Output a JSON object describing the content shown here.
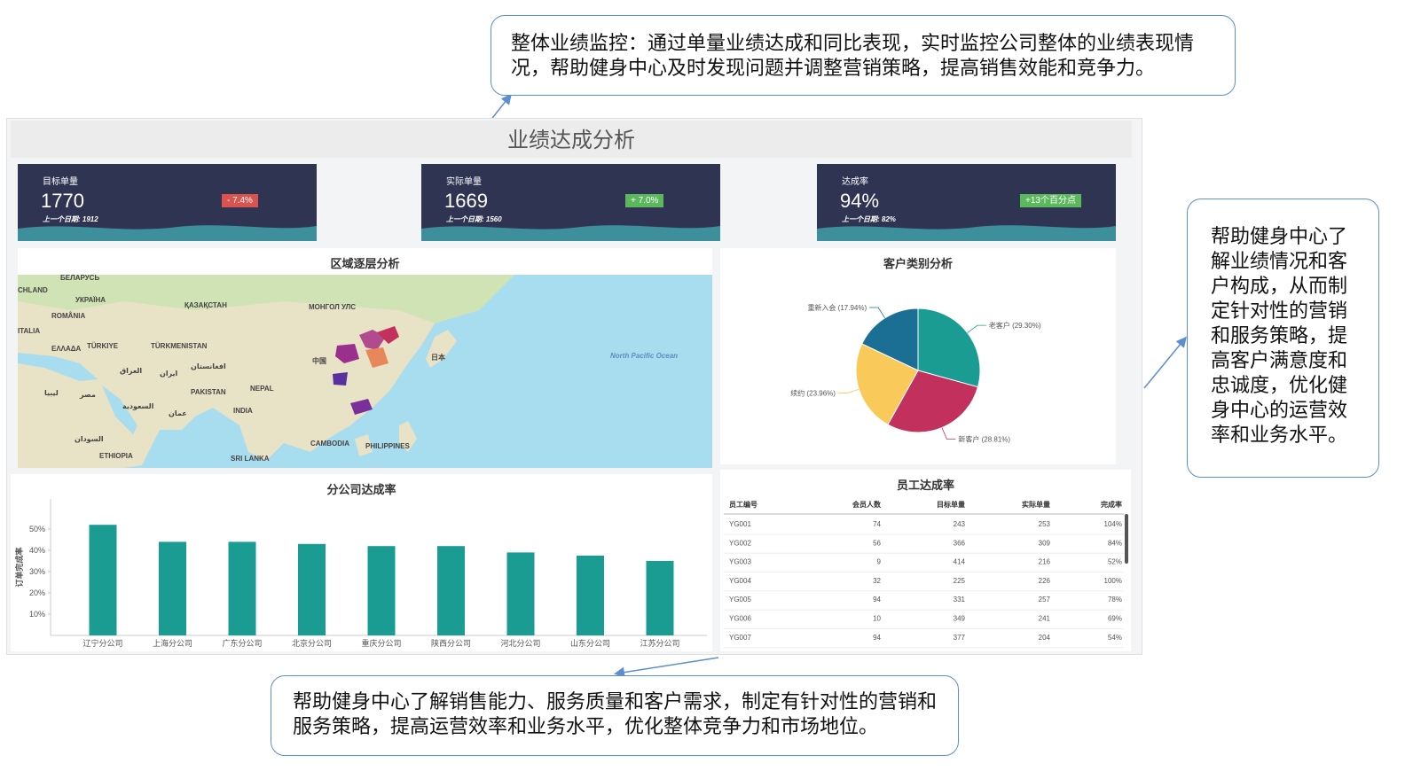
{
  "callouts": {
    "top": "整体业绩监控：通过单量业绩达成和同比表现，实时监控公司整体的业绩表现情况，帮助健身中心及时发现问题并调整营销策略，提高销售效能和竞争力。",
    "right": "帮助健身中心了解业绩情况和客户构成，从而制定针对性的营销和服务策略，提高客户满意度和忠诚度，优化健身中心的运营效率和业务水平。",
    "bottom": "帮助健身中心了解销售能力、服务质量和客户需求，制定有针对性的营销和服务策略，提高运营效率和业务水平，优化整体竞争力和市场地位。"
  },
  "dashboard": {
    "title": "业绩达成分析"
  },
  "kpis": [
    {
      "label": "目标单量",
      "value": "1770",
      "change": "- 7.4%",
      "trend": "down",
      "previous": "上一个日期: 1912"
    },
    {
      "label": "实际单量",
      "value": "1669",
      "change": "+ 7.0%",
      "trend": "up",
      "previous": "上一个日期: 1560"
    },
    {
      "label": "达成率",
      "value": "94%",
      "change": "+13个百分点",
      "trend": "up",
      "previous": "上一个日期: 82%"
    }
  ],
  "map": {
    "title": "区域逐层分析",
    "labels": [
      "БЕЛАРУСЬ",
      "CHLAND",
      "УКРАЇНА",
      "ROMÂNIA",
      "ITALIA",
      "TÜRKIYE",
      "ΕΛΛΑΔΑ",
      "ҚАЗАҚСТАН",
      "МОНГОЛ УЛС",
      "TÜRKMENISTAN",
      "العراق",
      "ایران",
      "افغانستان",
      "PAKISTAN",
      "NEPAL",
      "中国",
      "日本",
      "North Pacific Ocean",
      "INDIA",
      "مصر",
      "ليبيا",
      "السعودية",
      "عمان",
      "السودان",
      "ETHIOPIA",
      "CAMBODIA",
      "PHILIPPINES",
      "SRI LANKA"
    ]
  },
  "pie_chart": {
    "type": "pie",
    "title": "客户类别分析",
    "categories": [
      "老客户",
      "新客户",
      "续约",
      "重新入会"
    ],
    "values": [
      29.3,
      28.81,
      23.96,
      17.94
    ],
    "value_labels": [
      "老客户 (29.30%)",
      "新客户 (28.81%)",
      "续约 (23.96%)",
      "重新入会 (17.94%)"
    ],
    "colors": [
      "#1a9c93",
      "#c2305e",
      "#f9c95a",
      "#1b6e94"
    ]
  },
  "bar_chart": {
    "type": "bar",
    "title": "分公司达成率",
    "y_label": "订单完成率",
    "categories": [
      "辽宁分公司",
      "上海分公司",
      "广东分公司",
      "北京分公司",
      "重庆分公司",
      "陕西分公司",
      "河北分公司",
      "山东分公司",
      "江苏分公司"
    ],
    "values": [
      52,
      44,
      44,
      43,
      42,
      42,
      39,
      37.5,
      35
    ],
    "color": "#1a9c93",
    "ylim": [
      0,
      60
    ],
    "yticks": [
      {
        "value": 10,
        "label": "10%"
      },
      {
        "value": 20,
        "label": "20%"
      },
      {
        "value": 30,
        "label": "30%"
      },
      {
        "value": 40,
        "label": "40%"
      },
      {
        "value": 50,
        "label": "50%"
      }
    ]
  },
  "table": {
    "title": "员工达成率",
    "columns": [
      "员工编号",
      "会员人数",
      "目标单量",
      "实际单量",
      "完成率"
    ],
    "rows": [
      [
        "YG001",
        "74",
        "243",
        "253",
        "104%"
      ],
      [
        "YG002",
        "56",
        "366",
        "309",
        "84%"
      ],
      [
        "YG003",
        "9",
        "414",
        "216",
        "52%"
      ],
      [
        "YG004",
        "32",
        "225",
        "226",
        "100%"
      ],
      [
        "YG005",
        "94",
        "331",
        "257",
        "78%"
      ],
      [
        "YG006",
        "10",
        "349",
        "241",
        "69%"
      ],
      [
        "YG007",
        "94",
        "377",
        "204",
        "54%"
      ]
    ]
  }
}
